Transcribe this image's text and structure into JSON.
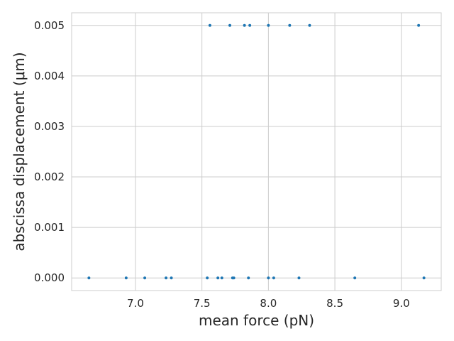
{
  "chart_data": {
    "type": "scatter",
    "title": "",
    "xlabel": "mean force (pN)",
    "ylabel": "abscissa displacement (μm)",
    "xlim": [
      6.52,
      9.3
    ],
    "ylim": [
      -0.00025,
      0.00525
    ],
    "x_ticks": [
      7.0,
      7.5,
      8.0,
      8.5,
      9.0
    ],
    "x_tick_labels": [
      "7.0",
      "7.5",
      "8.0",
      "8.5",
      "9.0"
    ],
    "y_ticks": [
      0.0,
      0.001,
      0.002,
      0.003,
      0.004,
      0.005
    ],
    "y_tick_labels": [
      "0.000",
      "0.001",
      "0.002",
      "0.003",
      "0.004",
      "0.005"
    ],
    "grid": true,
    "marker_color": "#1f77b4",
    "series": [
      {
        "points": [
          {
            "x": 6.65,
            "y": 0.0
          },
          {
            "x": 6.93,
            "y": 0.0
          },
          {
            "x": 7.07,
            "y": 0.0
          },
          {
            "x": 7.23,
            "y": 0.0
          },
          {
            "x": 7.27,
            "y": 0.0
          },
          {
            "x": 7.54,
            "y": 0.0
          },
          {
            "x": 7.62,
            "y": 0.0
          },
          {
            "x": 7.65,
            "y": 0.0
          },
          {
            "x": 7.73,
            "y": 0.0
          },
          {
            "x": 7.74,
            "y": 0.0
          },
          {
            "x": 7.85,
            "y": 0.0
          },
          {
            "x": 8.0,
            "y": 0.0
          },
          {
            "x": 8.04,
            "y": 0.0
          },
          {
            "x": 8.23,
            "y": 0.0
          },
          {
            "x": 8.65,
            "y": 0.0
          },
          {
            "x": 9.17,
            "y": 0.0
          },
          {
            "x": 7.56,
            "y": 0.005
          },
          {
            "x": 7.71,
            "y": 0.005
          },
          {
            "x": 7.82,
            "y": 0.005
          },
          {
            "x": 7.86,
            "y": 0.005
          },
          {
            "x": 8.0,
            "y": 0.005
          },
          {
            "x": 8.16,
            "y": 0.005
          },
          {
            "x": 8.31,
            "y": 0.005
          },
          {
            "x": 9.13,
            "y": 0.005
          }
        ]
      }
    ]
  }
}
